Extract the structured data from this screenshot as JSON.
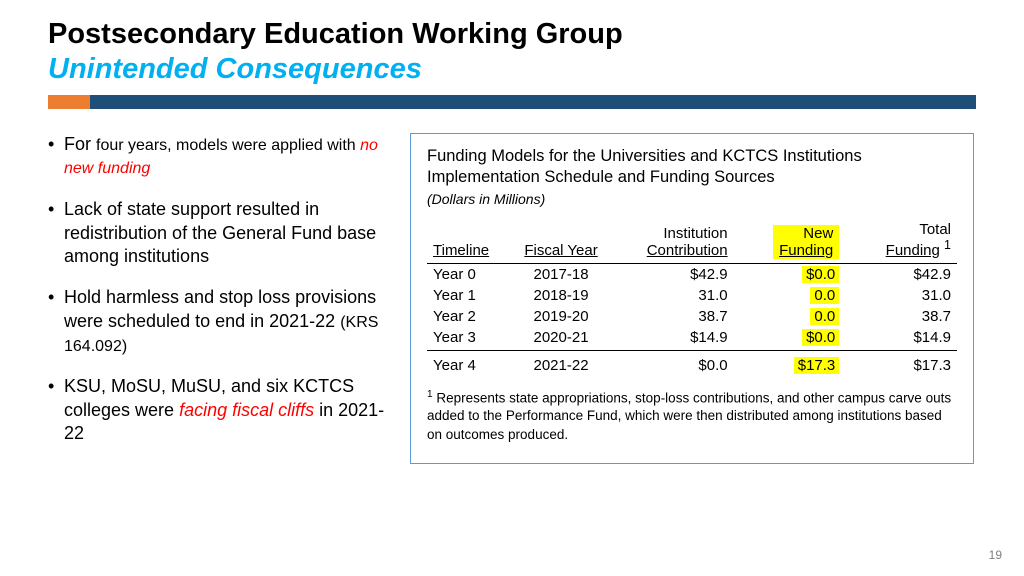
{
  "header": {
    "title_main": "Postsecondary Education Working Group",
    "title_sub": "Unintended Consequences"
  },
  "colors": {
    "orange": "#ed7d31",
    "blue_bar": "#1f4e79",
    "cyan": "#00b0f0",
    "red": "#ff0000",
    "highlight": "#ffff00",
    "panel_border": "#5b9bd5"
  },
  "bullets": {
    "b1_a": "For ",
    "b1_b": "four years, models were applied with ",
    "b1_c": "no new funding",
    "b2": "Lack of state support resulted in redistribution of the General Fund base among institutions",
    "b3_a": "Hold harmless and stop loss provisions were scheduled to end in 2021-22 ",
    "b3_b": "(KRS 164.092)",
    "b4_a": "KSU, MoSU, MuSU, and six KCTCS colleges were ",
    "b4_b": "facing fiscal cliffs",
    "b4_c": " in 2021-22"
  },
  "panel": {
    "title_l1": "Funding Models for the Universities and KCTCS Institutions",
    "title_l2": "Implementation Schedule and Funding Sources",
    "note": "(Dollars in Millions)",
    "columns": {
      "c1": "Timeline",
      "c2": "Fiscal Year",
      "c3a": "Institution",
      "c3b": "Contribution",
      "c4a": "New",
      "c4b": "Funding",
      "c5a": "Total",
      "c5b": "Funding",
      "c5sup": "1"
    },
    "rows": [
      {
        "timeline": "Year 0",
        "fy": "2017-18",
        "inst": "$42.9",
        "new": "$0.0",
        "total": "$42.9"
      },
      {
        "timeline": "Year 1",
        "fy": "2018-19",
        "inst": "31.0",
        "new": "0.0",
        "total": "31.0"
      },
      {
        "timeline": "Year 2",
        "fy": "2019-20",
        "inst": "38.7",
        "new": "0.0",
        "total": "38.7"
      },
      {
        "timeline": "Year 3",
        "fy": "2020-21",
        "inst": "$14.9",
        "new": "$0.0",
        "total": "$14.9"
      }
    ],
    "row_sep": {
      "timeline": "Year 4",
      "fy": "2021-22",
      "inst": "$0.0",
      "new": "$17.3",
      "total": "$17.3"
    },
    "footnote_sup": "1",
    "footnote": " Represents state appropriations, stop-loss contributions, and other campus carve outs added to the Performance Fund, which were then distributed among institutions based on outcomes produced."
  },
  "page_number": "19"
}
